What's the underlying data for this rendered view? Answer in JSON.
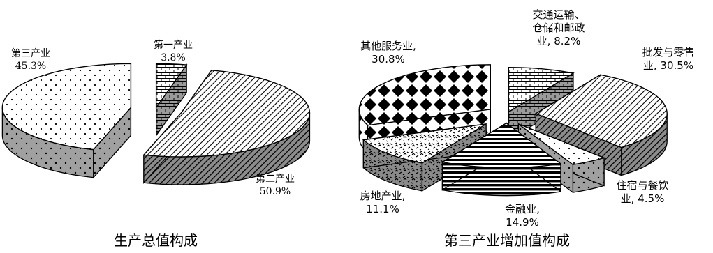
{
  "chart_data": [
    {
      "type": "pie",
      "title": "生产总值构成",
      "slices": [
        {
          "name": "第一产业",
          "value": 3.8,
          "label_lines": [
            "第一产业",
            "3.8%"
          ],
          "pattern": "brick"
        },
        {
          "name": "第二产业",
          "value": 50.9,
          "label_lines": [
            "第二产业",
            "50.9%"
          ],
          "pattern": "diag"
        },
        {
          "name": "第三产业",
          "value": 45.3,
          "label_lines": [
            "第三产业",
            "45.3%"
          ],
          "pattern": "dots"
        }
      ]
    },
    {
      "type": "pie",
      "title": "第三产业增加值构成",
      "slices": [
        {
          "name": "交通运输、仓储和邮政业",
          "value": 8.2,
          "label_lines": [
            "交通运输、",
            "仓储和邮政",
            "业, 8.2%"
          ],
          "pattern": "brick"
        },
        {
          "name": "批发与零售业",
          "value": 30.5,
          "label_lines": [
            "批发与零售",
            "业, 30.5%"
          ],
          "pattern": "diag"
        },
        {
          "name": "住宿与餐饮业",
          "value": 4.5,
          "label_lines": [
            "住宿与餐饮",
            "业, 4.5%"
          ],
          "pattern": "dots"
        },
        {
          "name": "金融业",
          "value": 14.9,
          "label_lines": [
            "金融业,",
            "14.9%"
          ],
          "pattern": "hlines"
        },
        {
          "name": "房地产业",
          "value": 11.1,
          "label_lines": [
            "房地产业,",
            "11.1%"
          ],
          "pattern": "checks"
        },
        {
          "name": "其他服务业",
          "value": 30.8,
          "label_lines": [
            "其他服务业,",
            "30.8%"
          ],
          "pattern": "diamonds"
        }
      ]
    }
  ]
}
